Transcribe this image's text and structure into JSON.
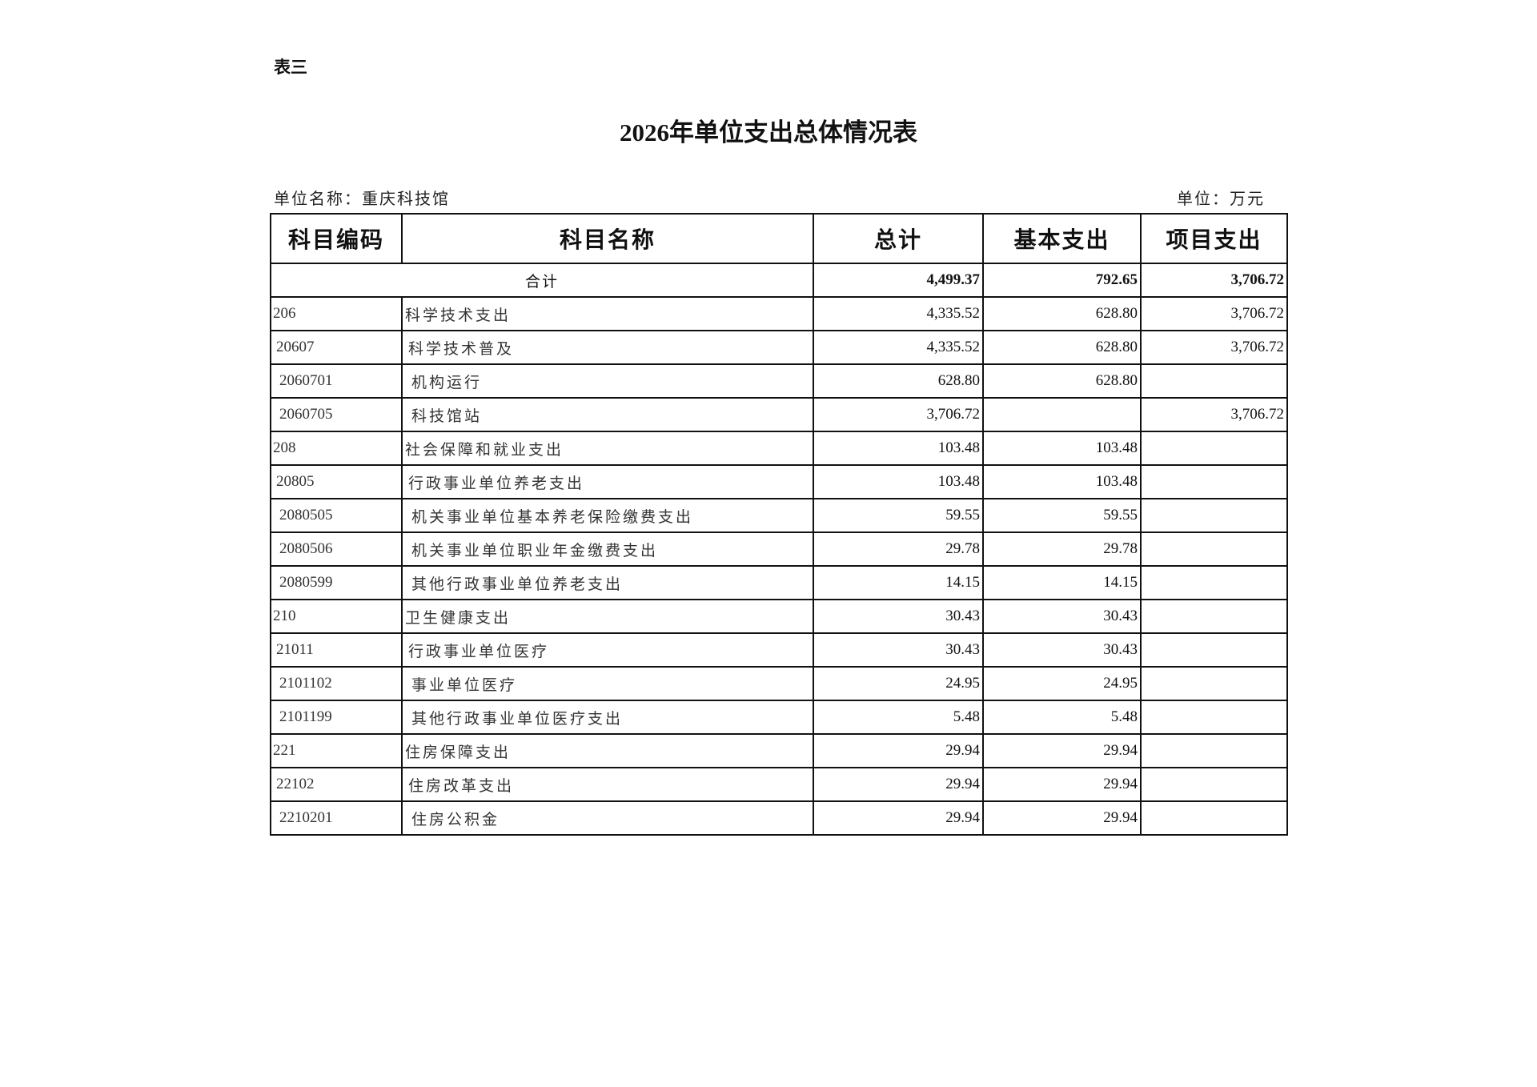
{
  "doc_label": "表三",
  "title": "2026年单位支出总体情况表",
  "unit_name": "单位名称：重庆科技馆",
  "unit": "单位：万元",
  "headers": [
    "科目编码",
    "科目名称",
    "总计",
    "基本支出",
    "项目支出"
  ],
  "total": {
    "label": "合计",
    "total": "4,499.37",
    "basic": "792.65",
    "project": "3,706.72"
  },
  "rows": [
    {
      "code": "206",
      "name": "科学技术支出",
      "total": "4,335.52",
      "basic": "628.80",
      "project": "3,706.72",
      "level": 1
    },
    {
      "code": "20607",
      "name": "科学技术普及",
      "total": "4,335.52",
      "basic": "628.80",
      "project": "3,706.72",
      "level": 2
    },
    {
      "code": "2060701",
      "name": "机构运行",
      "total": "628.80",
      "basic": "628.80",
      "project": "",
      "level": 3
    },
    {
      "code": "2060705",
      "name": "科技馆站",
      "total": "3,706.72",
      "basic": "",
      "project": "3,706.72",
      "level": 3
    },
    {
      "code": "208",
      "name": "社会保障和就业支出",
      "total": "103.48",
      "basic": "103.48",
      "project": "",
      "level": 1
    },
    {
      "code": "20805",
      "name": "行政事业单位养老支出",
      "total": "103.48",
      "basic": "103.48",
      "project": "",
      "level": 2
    },
    {
      "code": "2080505",
      "name": "机关事业单位基本养老保险缴费支出",
      "total": "59.55",
      "basic": "59.55",
      "project": "",
      "level": 3
    },
    {
      "code": "2080506",
      "name": "机关事业单位职业年金缴费支出",
      "total": "29.78",
      "basic": "29.78",
      "project": "",
      "level": 3
    },
    {
      "code": "2080599",
      "name": "其他行政事业单位养老支出",
      "total": "14.15",
      "basic": "14.15",
      "project": "",
      "level": 3
    },
    {
      "code": "210",
      "name": "卫生健康支出",
      "total": "30.43",
      "basic": "30.43",
      "project": "",
      "level": 1
    },
    {
      "code": "21011",
      "name": "行政事业单位医疗",
      "total": "30.43",
      "basic": "30.43",
      "project": "",
      "level": 2
    },
    {
      "code": "2101102",
      "name": "事业单位医疗",
      "total": "24.95",
      "basic": "24.95",
      "project": "",
      "level": 3
    },
    {
      "code": "2101199",
      "name": "其他行政事业单位医疗支出",
      "total": "5.48",
      "basic": "5.48",
      "project": "",
      "level": 3
    },
    {
      "code": "221",
      "name": "住房保障支出",
      "total": "29.94",
      "basic": "29.94",
      "project": "",
      "level": 1
    },
    {
      "code": "22102",
      "name": "住房改革支出",
      "total": "29.94",
      "basic": "29.94",
      "project": "",
      "level": 2
    },
    {
      "code": "2210201",
      "name": "住房公积金",
      "total": "29.94",
      "basic": "29.94",
      "project": "",
      "level": 3
    }
  ]
}
